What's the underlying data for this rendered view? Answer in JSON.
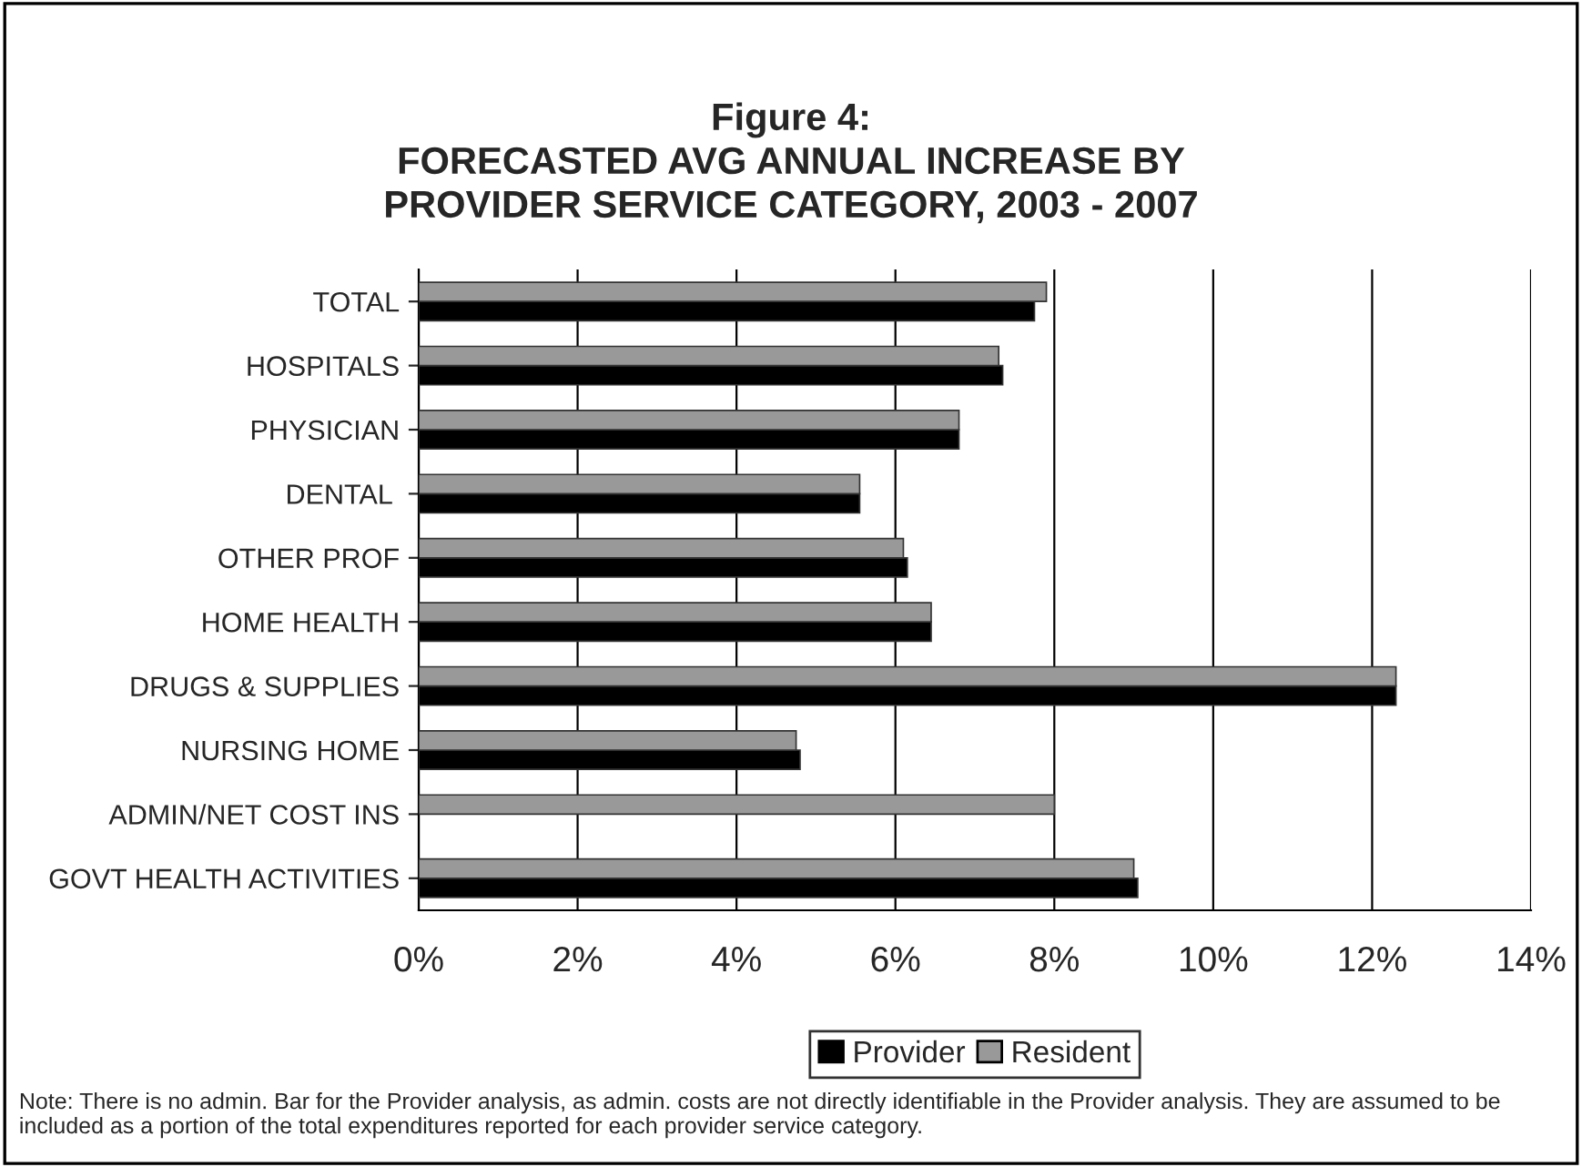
{
  "chart_data": {
    "type": "bar",
    "orientation": "horizontal",
    "title": "Figure 4:\nFORECASTED AVG ANNUAL INCREASE BY\nPROVIDER SERVICE CATEGORY, 2003 - 2007",
    "categories": [
      "TOTAL",
      "HOSPITALS",
      "PHYSICIAN",
      "DENTAL ",
      "OTHER PROF",
      "HOME HEALTH",
      "DRUGS & SUPPLIES",
      "NURSING HOME",
      "ADMIN/NET COST INS",
      "GOVT HEALTH ACTIVITIES"
    ],
    "series": [
      {
        "name": "Provider",
        "color": "#000000",
        "values": [
          7.75,
          7.35,
          6.8,
          5.55,
          6.15,
          6.45,
          12.3,
          4.8,
          null,
          9.05
        ]
      },
      {
        "name": "Resident",
        "color": "#999999",
        "values": [
          7.9,
          7.3,
          6.8,
          5.55,
          6.1,
          6.45,
          12.3,
          4.75,
          8.0,
          9.0
        ]
      }
    ],
    "xlim": [
      0,
      14
    ],
    "xticks": [
      {
        "value": 0,
        "label": "0%"
      },
      {
        "value": 2,
        "label": "2%"
      },
      {
        "value": 4,
        "label": "4%"
      },
      {
        "value": 6,
        "label": "6%"
      },
      {
        "value": 8,
        "label": "8%"
      },
      {
        "value": 10,
        "label": "10%"
      },
      {
        "value": 12,
        "label": "12%"
      },
      {
        "value": 14,
        "label": "14%"
      }
    ],
    "grid": "x",
    "legend": "bottom",
    "annotations": [
      "Note: There is no admin. Bar for the Provider analysis, as admin. costs are not directly identifiable in the Provider analysis. They are assumed to be included as a portion of the total expenditures reported for each provider service category."
    ]
  }
}
